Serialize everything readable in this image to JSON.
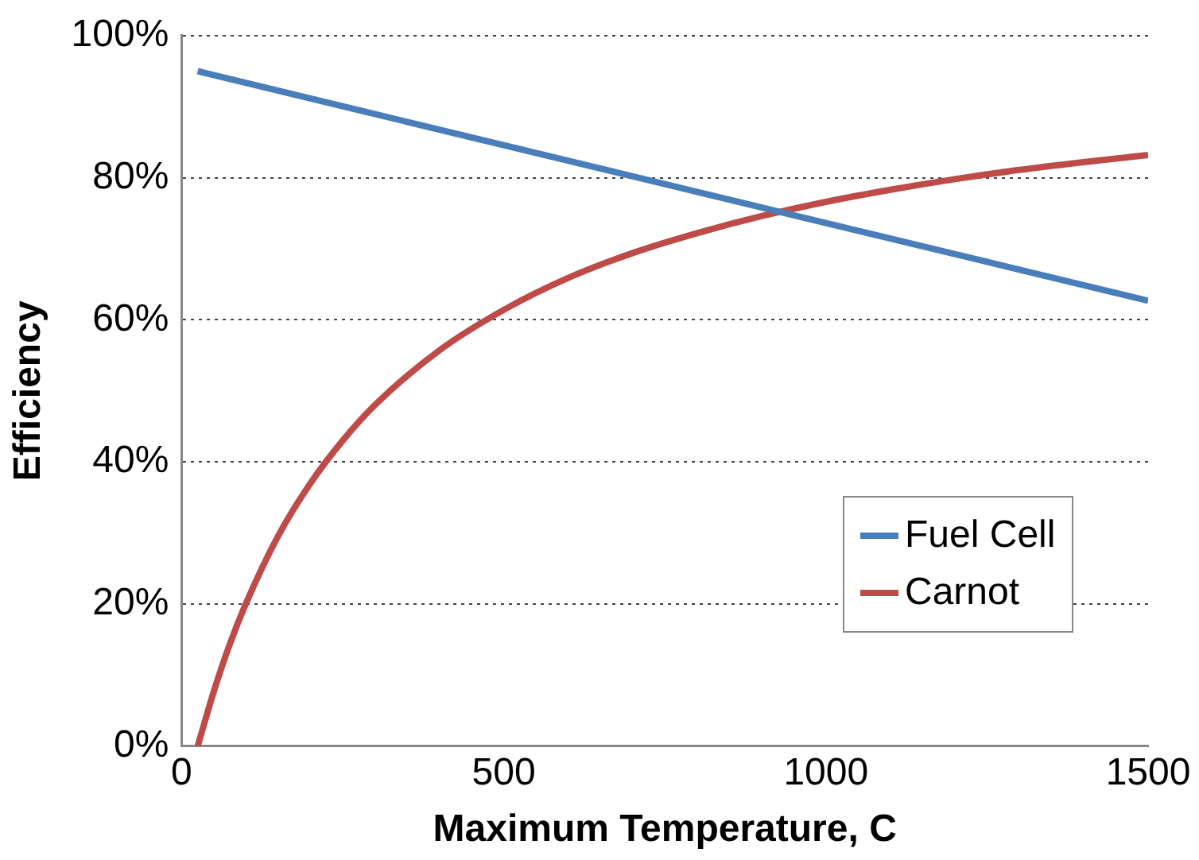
{
  "chart_data": {
    "type": "line",
    "xlabel": "Maximum Temperature, C",
    "ylabel": "Efficiency",
    "xlim": [
      0,
      1500
    ],
    "xticks": [
      0,
      500,
      1000,
      1500
    ],
    "ylim": [
      0,
      100
    ],
    "yticks": [
      {
        "value": 0,
        "label": "0%"
      },
      {
        "value": 20,
        "label": "20%"
      },
      {
        "value": 40,
        "label": "40%"
      },
      {
        "value": 60,
        "label": "60%"
      },
      {
        "value": 80,
        "label": "80%"
      },
      {
        "value": 100,
        "label": "100%"
      }
    ],
    "grid": "y",
    "legend": "bottom right",
    "marker": "none",
    "line_style": "solid",
    "series": [
      {
        "name": "Fuel Cell",
        "color": "#4a7ebb",
        "x": [
          25,
          750,
          1500
        ],
        "values": [
          95,
          79.1,
          62.7
        ]
      },
      {
        "name": "Carnot",
        "color": "#be4b48",
        "x": [
          25,
          50,
          75,
          100,
          150,
          200,
          250,
          300,
          400,
          500,
          600,
          700,
          800,
          900,
          1000,
          1100,
          1200,
          1300,
          1400,
          1500
        ],
        "values": [
          0,
          7.7,
          14.4,
          20.1,
          29.6,
          37,
          43,
          48,
          55.7,
          61.4,
          65.9,
          69.4,
          72.2,
          74.6,
          76.6,
          78.3,
          79.8,
          81.1,
          82.2,
          83.2
        ]
      }
    ]
  }
}
